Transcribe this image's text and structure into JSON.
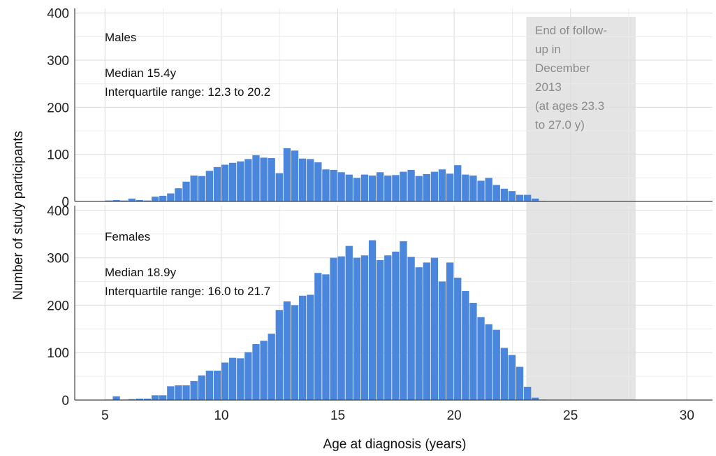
{
  "chart_data": {
    "type": "bar",
    "xlabel": "Age at diagnosis (years)",
    "ylabel": "Number of study participants",
    "xlim": [
      3.7,
      31.1
    ],
    "xticks": [
      "5",
      "10",
      "15",
      "20",
      "25",
      "30"
    ],
    "yticks": [
      "0",
      "100",
      "200",
      "300",
      "400"
    ],
    "ylim": [
      0,
      410
    ],
    "bin_start": 5.0,
    "bin_width": 0.3333,
    "grid": true,
    "shaded_region": {
      "x_range": [
        23.1,
        27.8
      ],
      "label_lines": [
        "End of follow-",
        "up in",
        "December",
        "2013",
        "(at ages 23.3",
        "to 27.0 y)"
      ]
    },
    "bar_color": "#4a86db",
    "panels": [
      {
        "name": "Males",
        "median_text": "Median 15.4y",
        "iqr_text": "Interquartile range: 12.3 to 20.2",
        "values": [
          2,
          3,
          2,
          6,
          3,
          2,
          10,
          12,
          17,
          28,
          42,
          55,
          54,
          65,
          73,
          78,
          82,
          85,
          90,
          98,
          93,
          92,
          60,
          113,
          108,
          91,
          90,
          83,
          68,
          67,
          62,
          57,
          50,
          57,
          55,
          62,
          55,
          56,
          63,
          67,
          54,
          58,
          63,
          68,
          59,
          77,
          57,
          55,
          44,
          50,
          35,
          27,
          22,
          14,
          14,
          6,
          1
        ]
      },
      {
        "name": "Females",
        "median_text": "Median 18.9y",
        "iqr_text": "Interquartile range: 16.0 to 21.7",
        "values": [
          1,
          8,
          1,
          2,
          3,
          3,
          10,
          10,
          29,
          31,
          31,
          40,
          52,
          62,
          62,
          79,
          89,
          88,
          101,
          118,
          125,
          140,
          190,
          208,
          200,
          220,
          222,
          268,
          265,
          300,
          303,
          325,
          300,
          305,
          337,
          295,
          305,
          313,
          335,
          302,
          280,
          290,
          300,
          250,
          290,
          258,
          230,
          205,
          175,
          160,
          148,
          110,
          95,
          70,
          28,
          5,
          1
        ]
      }
    ]
  }
}
